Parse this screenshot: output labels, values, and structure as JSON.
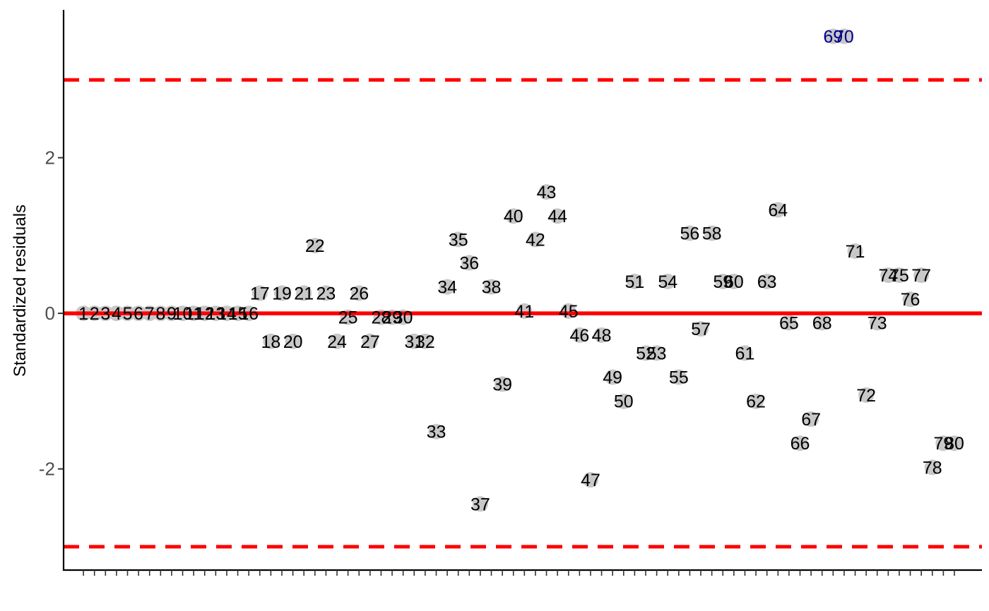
{
  "chart_data": {
    "type": "scatter",
    "title": "",
    "xlabel": "",
    "ylabel": "Standardized residuals",
    "ylim": [
      -3.3,
      3.9
    ],
    "xlim": [
      -0.8,
      82.5
    ],
    "yticks": [
      -2,
      0,
      2
    ],
    "ytick_labels": [
      "-2",
      "0",
      "2"
    ],
    "grid": false,
    "legend": "none",
    "colors": {
      "point": "#c8c8c8",
      "label": "#000000",
      "outlier_label": "#00008b",
      "reference_lines": "#ff0000"
    },
    "reference_lines": [
      {
        "y": 3,
        "style": "dashed"
      },
      {
        "y": 0,
        "style": "solid"
      },
      {
        "y": -3,
        "style": "dashed"
      }
    ],
    "series": [
      {
        "points": [
          {
            "label": "1",
            "x": 1,
            "y": 0,
            "outlier": false
          },
          {
            "label": "2",
            "x": 2,
            "y": 0,
            "outlier": false
          },
          {
            "label": "3",
            "x": 3,
            "y": 0,
            "outlier": false
          },
          {
            "label": "4",
            "x": 4,
            "y": 0,
            "outlier": false
          },
          {
            "label": "5",
            "x": 5,
            "y": 0,
            "outlier": false
          },
          {
            "label": "6",
            "x": 6,
            "y": 0,
            "outlier": false
          },
          {
            "label": "7",
            "x": 7,
            "y": 0,
            "outlier": false
          },
          {
            "label": "8",
            "x": 8,
            "y": 0,
            "outlier": false
          },
          {
            "label": "9",
            "x": 9,
            "y": 0,
            "outlier": false
          },
          {
            "label": "10",
            "x": 10,
            "y": 0,
            "outlier": false
          },
          {
            "label": "11",
            "x": 11,
            "y": 0,
            "outlier": false
          },
          {
            "label": "12",
            "x": 12,
            "y": 0,
            "outlier": false
          },
          {
            "label": "13",
            "x": 13,
            "y": 0,
            "outlier": false
          },
          {
            "label": "14",
            "x": 14,
            "y": 0,
            "outlier": false
          },
          {
            "label": "15",
            "x": 15,
            "y": 0,
            "outlier": false
          },
          {
            "label": "16",
            "x": 16,
            "y": 0,
            "outlier": false
          },
          {
            "label": "17",
            "x": 17,
            "y": 0.26,
            "outlier": false
          },
          {
            "label": "18",
            "x": 18,
            "y": -0.36,
            "outlier": false
          },
          {
            "label": "19",
            "x": 19,
            "y": 0.26,
            "outlier": false
          },
          {
            "label": "20",
            "x": 20,
            "y": -0.36,
            "outlier": false
          },
          {
            "label": "21",
            "x": 21,
            "y": 0.26,
            "outlier": false
          },
          {
            "label": "22",
            "x": 22,
            "y": 0.87,
            "outlier": false
          },
          {
            "label": "23",
            "x": 23,
            "y": 0.26,
            "outlier": false
          },
          {
            "label": "24",
            "x": 24,
            "y": -0.36,
            "outlier": false
          },
          {
            "label": "25",
            "x": 25,
            "y": -0.05,
            "outlier": false
          },
          {
            "label": "26",
            "x": 26,
            "y": 0.26,
            "outlier": false
          },
          {
            "label": "27",
            "x": 27,
            "y": -0.36,
            "outlier": false
          },
          {
            "label": "28",
            "x": 28,
            "y": -0.05,
            "outlier": false
          },
          {
            "label": "29",
            "x": 29,
            "y": -0.05,
            "outlier": false
          },
          {
            "label": "30",
            "x": 30,
            "y": -0.05,
            "outlier": false
          },
          {
            "label": "31",
            "x": 31,
            "y": -0.36,
            "outlier": false
          },
          {
            "label": "32",
            "x": 32,
            "y": -0.36,
            "outlier": false
          },
          {
            "label": "33",
            "x": 33,
            "y": -1.52,
            "outlier": false
          },
          {
            "label": "34",
            "x": 34,
            "y": 0.34,
            "outlier": false
          },
          {
            "label": "35",
            "x": 35,
            "y": 0.95,
            "outlier": false
          },
          {
            "label": "36",
            "x": 36,
            "y": 0.65,
            "outlier": false
          },
          {
            "label": "37",
            "x": 37,
            "y": -2.45,
            "outlier": false
          },
          {
            "label": "38",
            "x": 38,
            "y": 0.34,
            "outlier": false
          },
          {
            "label": "39",
            "x": 39,
            "y": -0.91,
            "outlier": false
          },
          {
            "label": "40",
            "x": 40,
            "y": 1.25,
            "outlier": false
          },
          {
            "label": "41",
            "x": 41,
            "y": 0.03,
            "outlier": false
          },
          {
            "label": "42",
            "x": 42,
            "y": 0.95,
            "outlier": false
          },
          {
            "label": "43",
            "x": 43,
            "y": 1.56,
            "outlier": false
          },
          {
            "label": "44",
            "x": 44,
            "y": 1.25,
            "outlier": false
          },
          {
            "label": "45",
            "x": 45,
            "y": 0.03,
            "outlier": false
          },
          {
            "label": "46",
            "x": 46,
            "y": -0.28,
            "outlier": false
          },
          {
            "label": "47",
            "x": 47,
            "y": -2.14,
            "outlier": false
          },
          {
            "label": "48",
            "x": 48,
            "y": -0.28,
            "outlier": false
          },
          {
            "label": "49",
            "x": 49,
            "y": -0.82,
            "outlier": false
          },
          {
            "label": "50",
            "x": 50,
            "y": -1.13,
            "outlier": false
          },
          {
            "label": "51",
            "x": 51,
            "y": 0.41,
            "outlier": false
          },
          {
            "label": "52",
            "x": 52,
            "y": -0.51,
            "outlier": false
          },
          {
            "label": "53",
            "x": 53,
            "y": -0.51,
            "outlier": false
          },
          {
            "label": "54",
            "x": 54,
            "y": 0.41,
            "outlier": false
          },
          {
            "label": "55",
            "x": 55,
            "y": -0.82,
            "outlier": false
          },
          {
            "label": "56",
            "x": 56,
            "y": 1.03,
            "outlier": false
          },
          {
            "label": "57",
            "x": 57,
            "y": -0.2,
            "outlier": false
          },
          {
            "label": "58",
            "x": 58,
            "y": 1.03,
            "outlier": false
          },
          {
            "label": "59",
            "x": 59,
            "y": 0.41,
            "outlier": false
          },
          {
            "label": "60",
            "x": 60,
            "y": 0.41,
            "outlier": false
          },
          {
            "label": "61",
            "x": 61,
            "y": -0.51,
            "outlier": false
          },
          {
            "label": "62",
            "x": 62,
            "y": -1.13,
            "outlier": false
          },
          {
            "label": "63",
            "x": 63,
            "y": 0.41,
            "outlier": false
          },
          {
            "label": "64",
            "x": 64,
            "y": 1.33,
            "outlier": false
          },
          {
            "label": "65",
            "x": 65,
            "y": -0.12,
            "outlier": false
          },
          {
            "label": "66",
            "x": 66,
            "y": -1.67,
            "outlier": false
          },
          {
            "label": "67",
            "x": 67,
            "y": -1.36,
            "outlier": false
          },
          {
            "label": "68",
            "x": 68,
            "y": -0.12,
            "outlier": false
          },
          {
            "label": "69",
            "x": 69,
            "y": 3.56,
            "outlier": true
          },
          {
            "label": "70",
            "x": 70,
            "y": 3.56,
            "outlier": true
          },
          {
            "label": "71",
            "x": 71,
            "y": 0.8,
            "outlier": false
          },
          {
            "label": "72",
            "x": 72,
            "y": -1.05,
            "outlier": false
          },
          {
            "label": "73",
            "x": 73,
            "y": -0.12,
            "outlier": false
          },
          {
            "label": "74",
            "x": 74,
            "y": 0.49,
            "outlier": false
          },
          {
            "label": "75",
            "x": 75,
            "y": 0.49,
            "outlier": false
          },
          {
            "label": "76",
            "x": 76,
            "y": 0.18,
            "outlier": false
          },
          {
            "label": "77",
            "x": 77,
            "y": 0.49,
            "outlier": false
          },
          {
            "label": "78",
            "x": 78,
            "y": -1.98,
            "outlier": false
          },
          {
            "label": "79",
            "x": 79,
            "y": -1.67,
            "outlier": false
          },
          {
            "label": "80",
            "x": 80,
            "y": -1.67,
            "outlier": false
          }
        ]
      }
    ]
  }
}
